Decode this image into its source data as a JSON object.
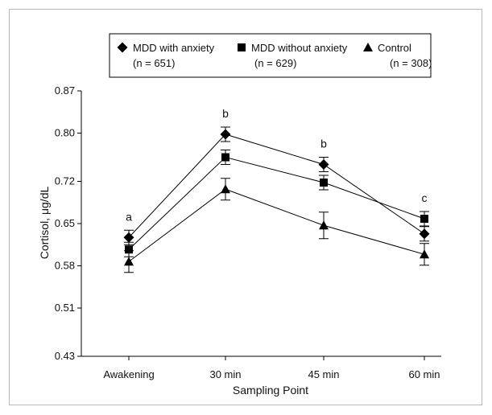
{
  "chart_data": {
    "type": "line",
    "xlabel": "Sampling Point",
    "ylabel": "Cortisol, μg/dL",
    "categories": [
      "Awakening",
      "30 min",
      "45 min",
      "60 min"
    ],
    "ylim": [
      0.43,
      0.87
    ],
    "yticks": [
      "0.87",
      "0.80",
      "0.72",
      "0.65",
      "0.58",
      "0.51",
      "0.43"
    ],
    "ytick_values": [
      0.87,
      0.8,
      0.72,
      0.65,
      0.58,
      0.51,
      0.43
    ],
    "grid": false,
    "legend_position": "top",
    "series": [
      {
        "name": "MDD with anxiety",
        "legend_n": "(n = 651)",
        "marker": "diamond",
        "values": [
          0.627,
          0.798,
          0.748,
          0.633
        ],
        "errors": [
          0.012,
          0.012,
          0.012,
          0.012
        ]
      },
      {
        "name": "MDD without anxiety",
        "legend_n": "(n = 629)",
        "marker": "square",
        "values": [
          0.607,
          0.76,
          0.718,
          0.658
        ],
        "errors": [
          0.012,
          0.012,
          0.012,
          0.012
        ]
      },
      {
        "name": "Control",
        "legend_n": "(n = 308)",
        "marker": "triangle",
        "values": [
          0.587,
          0.707,
          0.647,
          0.599
        ],
        "errors": [
          0.018,
          0.018,
          0.022,
          0.018
        ]
      }
    ],
    "annotations": [
      {
        "category_index": 0,
        "text": "a"
      },
      {
        "category_index": 1,
        "text": "b"
      },
      {
        "category_index": 2,
        "text": "b"
      },
      {
        "category_index": 3,
        "text": "c"
      }
    ]
  }
}
